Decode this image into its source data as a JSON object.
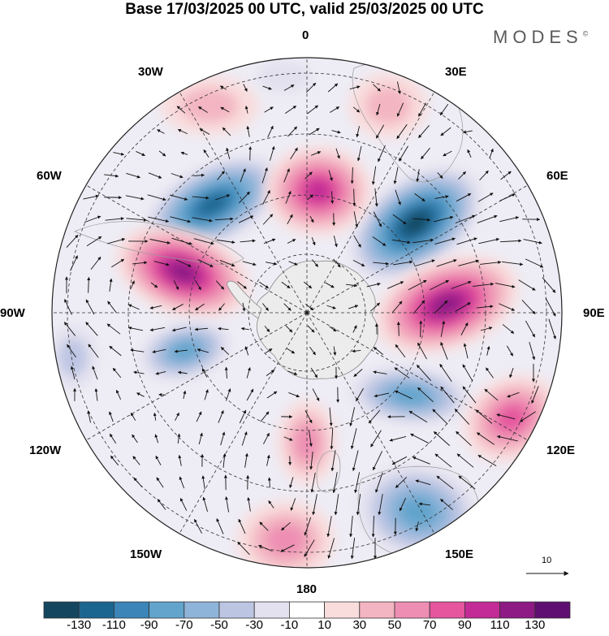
{
  "title": "Base 17/03/2025 00 UTC, valid 25/03/2025 00 UTC",
  "brand": {
    "name": "MODES",
    "mark": "©"
  },
  "longitude_labels": {
    "top": "0",
    "bottom": "180",
    "left": "90W",
    "right": "90E",
    "upper_left_1": "30W",
    "upper_left_2": "60W",
    "lower_left_1": "120W",
    "lower_left_2": "150W",
    "upper_right_1": "30E",
    "upper_right_2": "60E",
    "lower_right_1": "120E",
    "lower_right_2": "150E"
  },
  "reference_vector": {
    "label": "10"
  },
  "projection": "south polar stereographic",
  "colors": {
    "land": "#ececec",
    "coast": "#8a8a8a",
    "grid": "#333333",
    "arrows": "#111111"
  },
  "colorbar": {
    "colors": [
      "#14475f",
      "#1b6691",
      "#3b85b8",
      "#62a4cc",
      "#8fb4d9",
      "#bcc5e2",
      "#e3e1ef",
      "#ffffff",
      "#f9dcdc",
      "#f3b5c1",
      "#ee8eb3",
      "#e5569e",
      "#c32b96",
      "#8d1a85",
      "#5e0f71"
    ],
    "labels": [
      "-130",
      "-110",
      "-90",
      "-70",
      "-50",
      "-30",
      "-10",
      "10",
      "30",
      "50",
      "70",
      "90",
      "110",
      "130"
    ]
  },
  "anomalies": [
    {
      "name": "low-west-60w",
      "value": -125
    },
    {
      "name": "low-east-50e",
      "value": -130
    },
    {
      "name": "high-south-atlantic",
      "value": 105
    },
    {
      "name": "high-west-75w",
      "value": 125
    },
    {
      "name": "high-east-100e",
      "value": 125
    },
    {
      "name": "low-110w",
      "value": -70
    },
    {
      "name": "low-110e",
      "value": -70
    },
    {
      "name": "high-125e",
      "value": 75
    },
    {
      "name": "high-165w",
      "value": 65
    },
    {
      "name": "low-150e",
      "value": -70
    },
    {
      "name": "high-20w",
      "value": 40
    },
    {
      "name": "high-20e",
      "value": 40
    },
    {
      "name": "high-175e",
      "value": 55
    },
    {
      "name": "low-10w",
      "value": -25
    },
    {
      "name": "low-100w",
      "value": -35
    }
  ]
}
